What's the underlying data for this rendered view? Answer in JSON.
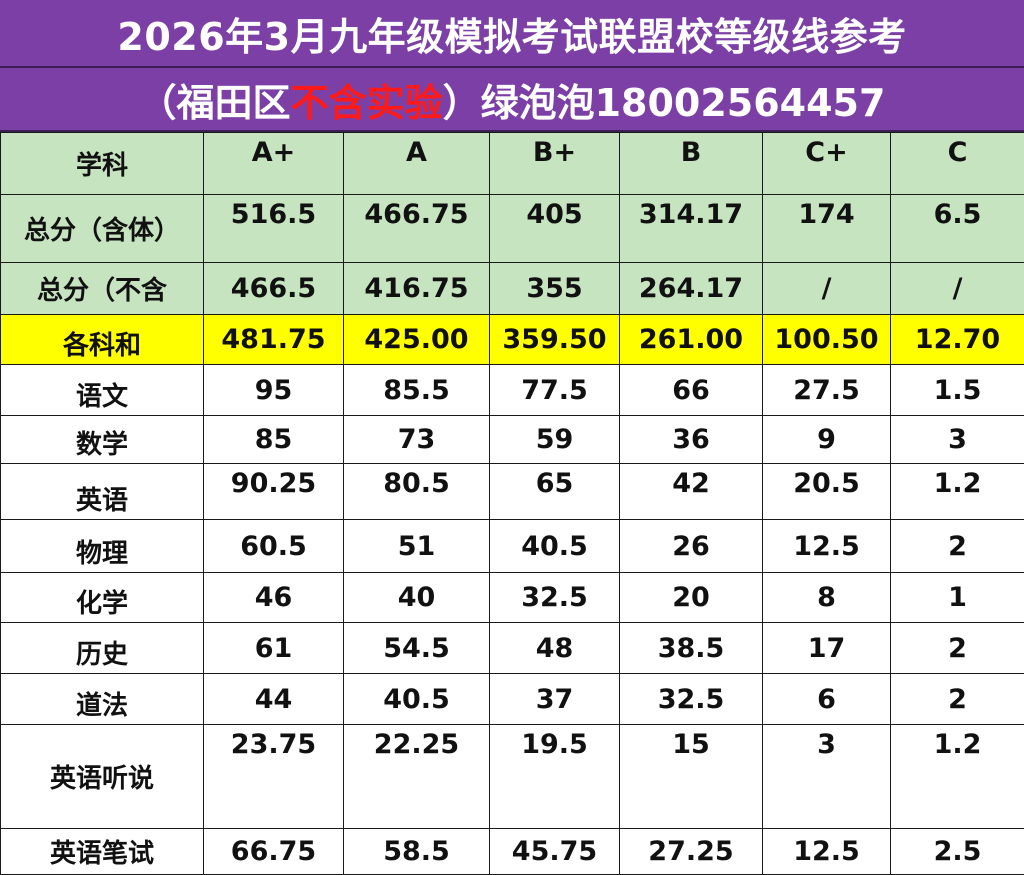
{
  "title": {
    "line1": "2026年3月九年级模拟考试联盟校等级线参考",
    "line2_prefix": "（福田区",
    "line2_red": "不含实验",
    "line2_suffix": "）绿泡泡18002564457"
  },
  "table": {
    "header": [
      "学科",
      "A+",
      "A",
      "B+",
      "B",
      "C+",
      "C"
    ],
    "rows": [
      {
        "label": "总分（含体）",
        "values": [
          "516.5",
          "466.75",
          "405",
          "314.17",
          "174",
          "6.5"
        ]
      },
      {
        "label": "总分（不含",
        "values": [
          "466.5",
          "416.75",
          "355",
          "264.17",
          "/",
          "/"
        ]
      },
      {
        "label": "各科和",
        "values": [
          "481.75",
          "425.00",
          "359.50",
          "261.00",
          "100.50",
          "12.70"
        ]
      },
      {
        "label": "语文",
        "values": [
          "95",
          "85.5",
          "77.5",
          "66",
          "27.5",
          "1.5"
        ]
      },
      {
        "label": "数学",
        "values": [
          "85",
          "73",
          "59",
          "36",
          "9",
          "3"
        ]
      },
      {
        "label": "英语",
        "values": [
          "90.25",
          "80.5",
          "65",
          "42",
          "20.5",
          "1.2"
        ]
      },
      {
        "label": "物理",
        "values": [
          "60.5",
          "51",
          "40.5",
          "26",
          "12.5",
          "2"
        ]
      },
      {
        "label": "化学",
        "values": [
          "46",
          "40",
          "32.5",
          "20",
          "8",
          "1"
        ]
      },
      {
        "label": "历史",
        "values": [
          "61",
          "54.5",
          "48",
          "38.5",
          "17",
          "2"
        ]
      },
      {
        "label": "道法",
        "values": [
          "44",
          "40.5",
          "37",
          "32.5",
          "6",
          "2"
        ]
      },
      {
        "label": "英语听说",
        "values": [
          "23.75",
          "22.25",
          "19.5",
          "15",
          "3",
          "1.2"
        ]
      },
      {
        "label": "英语笔试",
        "values": [
          "66.75",
          "58.5",
          "45.75",
          "27.25",
          "12.5",
          "2.5"
        ]
      }
    ]
  },
  "colors": {
    "title_bg": "#7b3fa6",
    "highlight_red": "#ff1a1a",
    "header_green": "#c7e4c0",
    "sum_yellow": "#ffff00"
  }
}
